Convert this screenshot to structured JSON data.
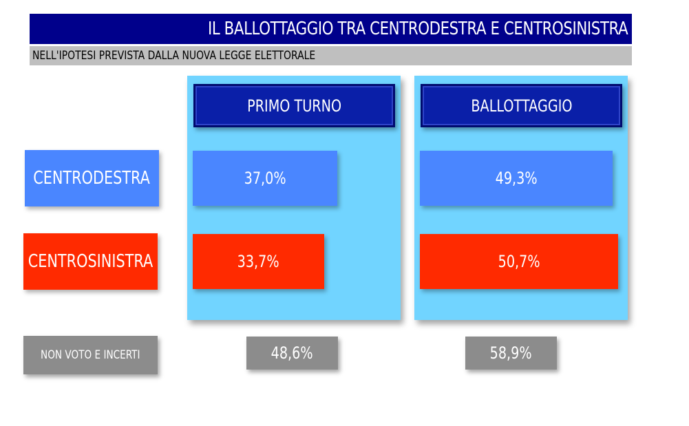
{
  "header": {
    "title": "IL BALLOTTAGGIO TRA CENTRODESTRA E CENTROSINISTRA",
    "subtitle": "NELL'IPOTESI PREVISTA DALLA NUOVA LEGGE ELETTORALE"
  },
  "colors": {
    "title_bg": "#00008b",
    "subtitle_bg": "#bfbfbf",
    "panel_bg": "#71d4ff",
    "header_bg": "#0a1fa8",
    "centrodestra": "#4a86ff",
    "centrosinistra": "#ff2a00",
    "non_voto": "#8c8c8c"
  },
  "chart_data": {
    "type": "table",
    "columns": [
      "PRIMO TURNO",
      "BALLOTTAGGIO"
    ],
    "rows": [
      {
        "label": "CENTRODESTRA",
        "values": [
          37.0,
          49.3
        ],
        "display": [
          "37,0%",
          "49,3%"
        ]
      },
      {
        "label": "CENTROSINISTRA",
        "values": [
          33.7,
          50.7
        ],
        "display": [
          "33,7%",
          "50,7%"
        ]
      },
      {
        "label": "NON VOTO E INCERTI",
        "values": [
          48.6,
          58.9
        ],
        "display": [
          "48,6%",
          "58,9%"
        ]
      }
    ]
  }
}
